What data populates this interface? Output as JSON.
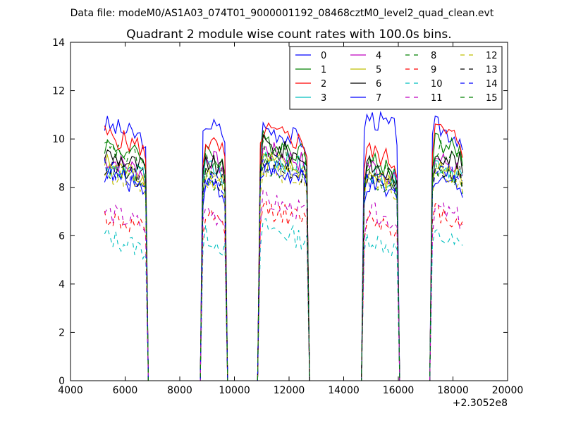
{
  "chart_data": {
    "type": "line",
    "suptitle": "Data file: modeM0/AS1A03_074T01_9000001192_08468cztM0_level2_quad_clean.evt",
    "title": "Quadrant 2 module wise count rates with 100.0s bins.",
    "xlabel": "",
    "ylabel": "",
    "x_offset_label": "+2.3052e8",
    "xlim": [
      4000,
      20000
    ],
    "ylim": [
      0,
      14
    ],
    "xticks": [
      "4000",
      "6000",
      "8000",
      "10000",
      "12000",
      "14000",
      "16000",
      "18000",
      "20000"
    ],
    "yticks": [
      "0",
      "2",
      "4",
      "6",
      "8",
      "10",
      "12",
      "14"
    ],
    "grid": false,
    "legend_placement": "top-right",
    "legend_columns": 4,
    "segments": [
      {
        "start": 5250,
        "end": 6750
      },
      {
        "start": 8850,
        "end": 9650
      },
      {
        "start": 10950,
        "end": 12650
      },
      {
        "start": 14750,
        "end": 15950
      },
      {
        "start": 17250,
        "end": 18350
      }
    ],
    "series": [
      {
        "name": "0",
        "color": "#0000ff",
        "dash": "solid",
        "levels": [
          10.6,
          10.8,
          10.5,
          11.0,
          10.6
        ]
      },
      {
        "name": "1",
        "color": "#008000",
        "dash": "solid",
        "levels": [
          9.8,
          9.6,
          10.0,
          9.2,
          10.0
        ]
      },
      {
        "name": "2",
        "color": "#ff0000",
        "dash": "solid",
        "levels": [
          10.2,
          10.0,
          10.4,
          9.6,
          10.5
        ]
      },
      {
        "name": "3",
        "color": "#00bfbf",
        "dash": "solid",
        "levels": [
          9.0,
          9.0,
          9.4,
          8.8,
          9.1
        ]
      },
      {
        "name": "4",
        "color": "#bf00bf",
        "dash": "solid",
        "levels": [
          9.2,
          9.4,
          9.6,
          9.0,
          9.3
        ]
      },
      {
        "name": "5",
        "color": "#bfbf00",
        "dash": "solid",
        "levels": [
          9.0,
          8.8,
          9.2,
          8.6,
          9.0
        ]
      },
      {
        "name": "6",
        "color": "#000000",
        "dash": "solid",
        "levels": [
          9.4,
          9.2,
          9.8,
          9.0,
          9.6
        ]
      },
      {
        "name": "7",
        "color": "#0000ff",
        "dash": "solid",
        "levels": [
          8.6,
          8.4,
          8.8,
          8.2,
          8.6
        ]
      },
      {
        "name": "8",
        "color": "#008000",
        "dash": "dashed",
        "levels": [
          8.8,
          8.6,
          9.0,
          8.4,
          8.9
        ]
      },
      {
        "name": "9",
        "color": "#ff0000",
        "dash": "dashed",
        "levels": [
          6.8,
          6.9,
          7.2,
          6.9,
          7.1
        ]
      },
      {
        "name": "10",
        "color": "#00bfbf",
        "dash": "dashed",
        "levels": [
          6.0,
          6.1,
          6.4,
          6.0,
          6.1
        ]
      },
      {
        "name": "11",
        "color": "#bf00bf",
        "dash": "dashed",
        "levels": [
          7.0,
          7.2,
          7.5,
          7.1,
          7.2
        ]
      },
      {
        "name": "12",
        "color": "#bfbf00",
        "dash": "dashed",
        "levels": [
          8.7,
          8.5,
          8.9,
          8.4,
          8.8
        ]
      },
      {
        "name": "13",
        "color": "#000000",
        "dash": "dashed",
        "levels": [
          8.9,
          8.7,
          9.1,
          8.5,
          9.0
        ]
      },
      {
        "name": "14",
        "color": "#0000ff",
        "dash": "dashed",
        "levels": [
          8.8,
          8.6,
          9.1,
          8.5,
          8.9
        ]
      },
      {
        "name": "15",
        "color": "#008000",
        "dash": "dashed",
        "levels": [
          9.6,
          9.2,
          9.7,
          9.0,
          9.7
        ]
      }
    ]
  }
}
